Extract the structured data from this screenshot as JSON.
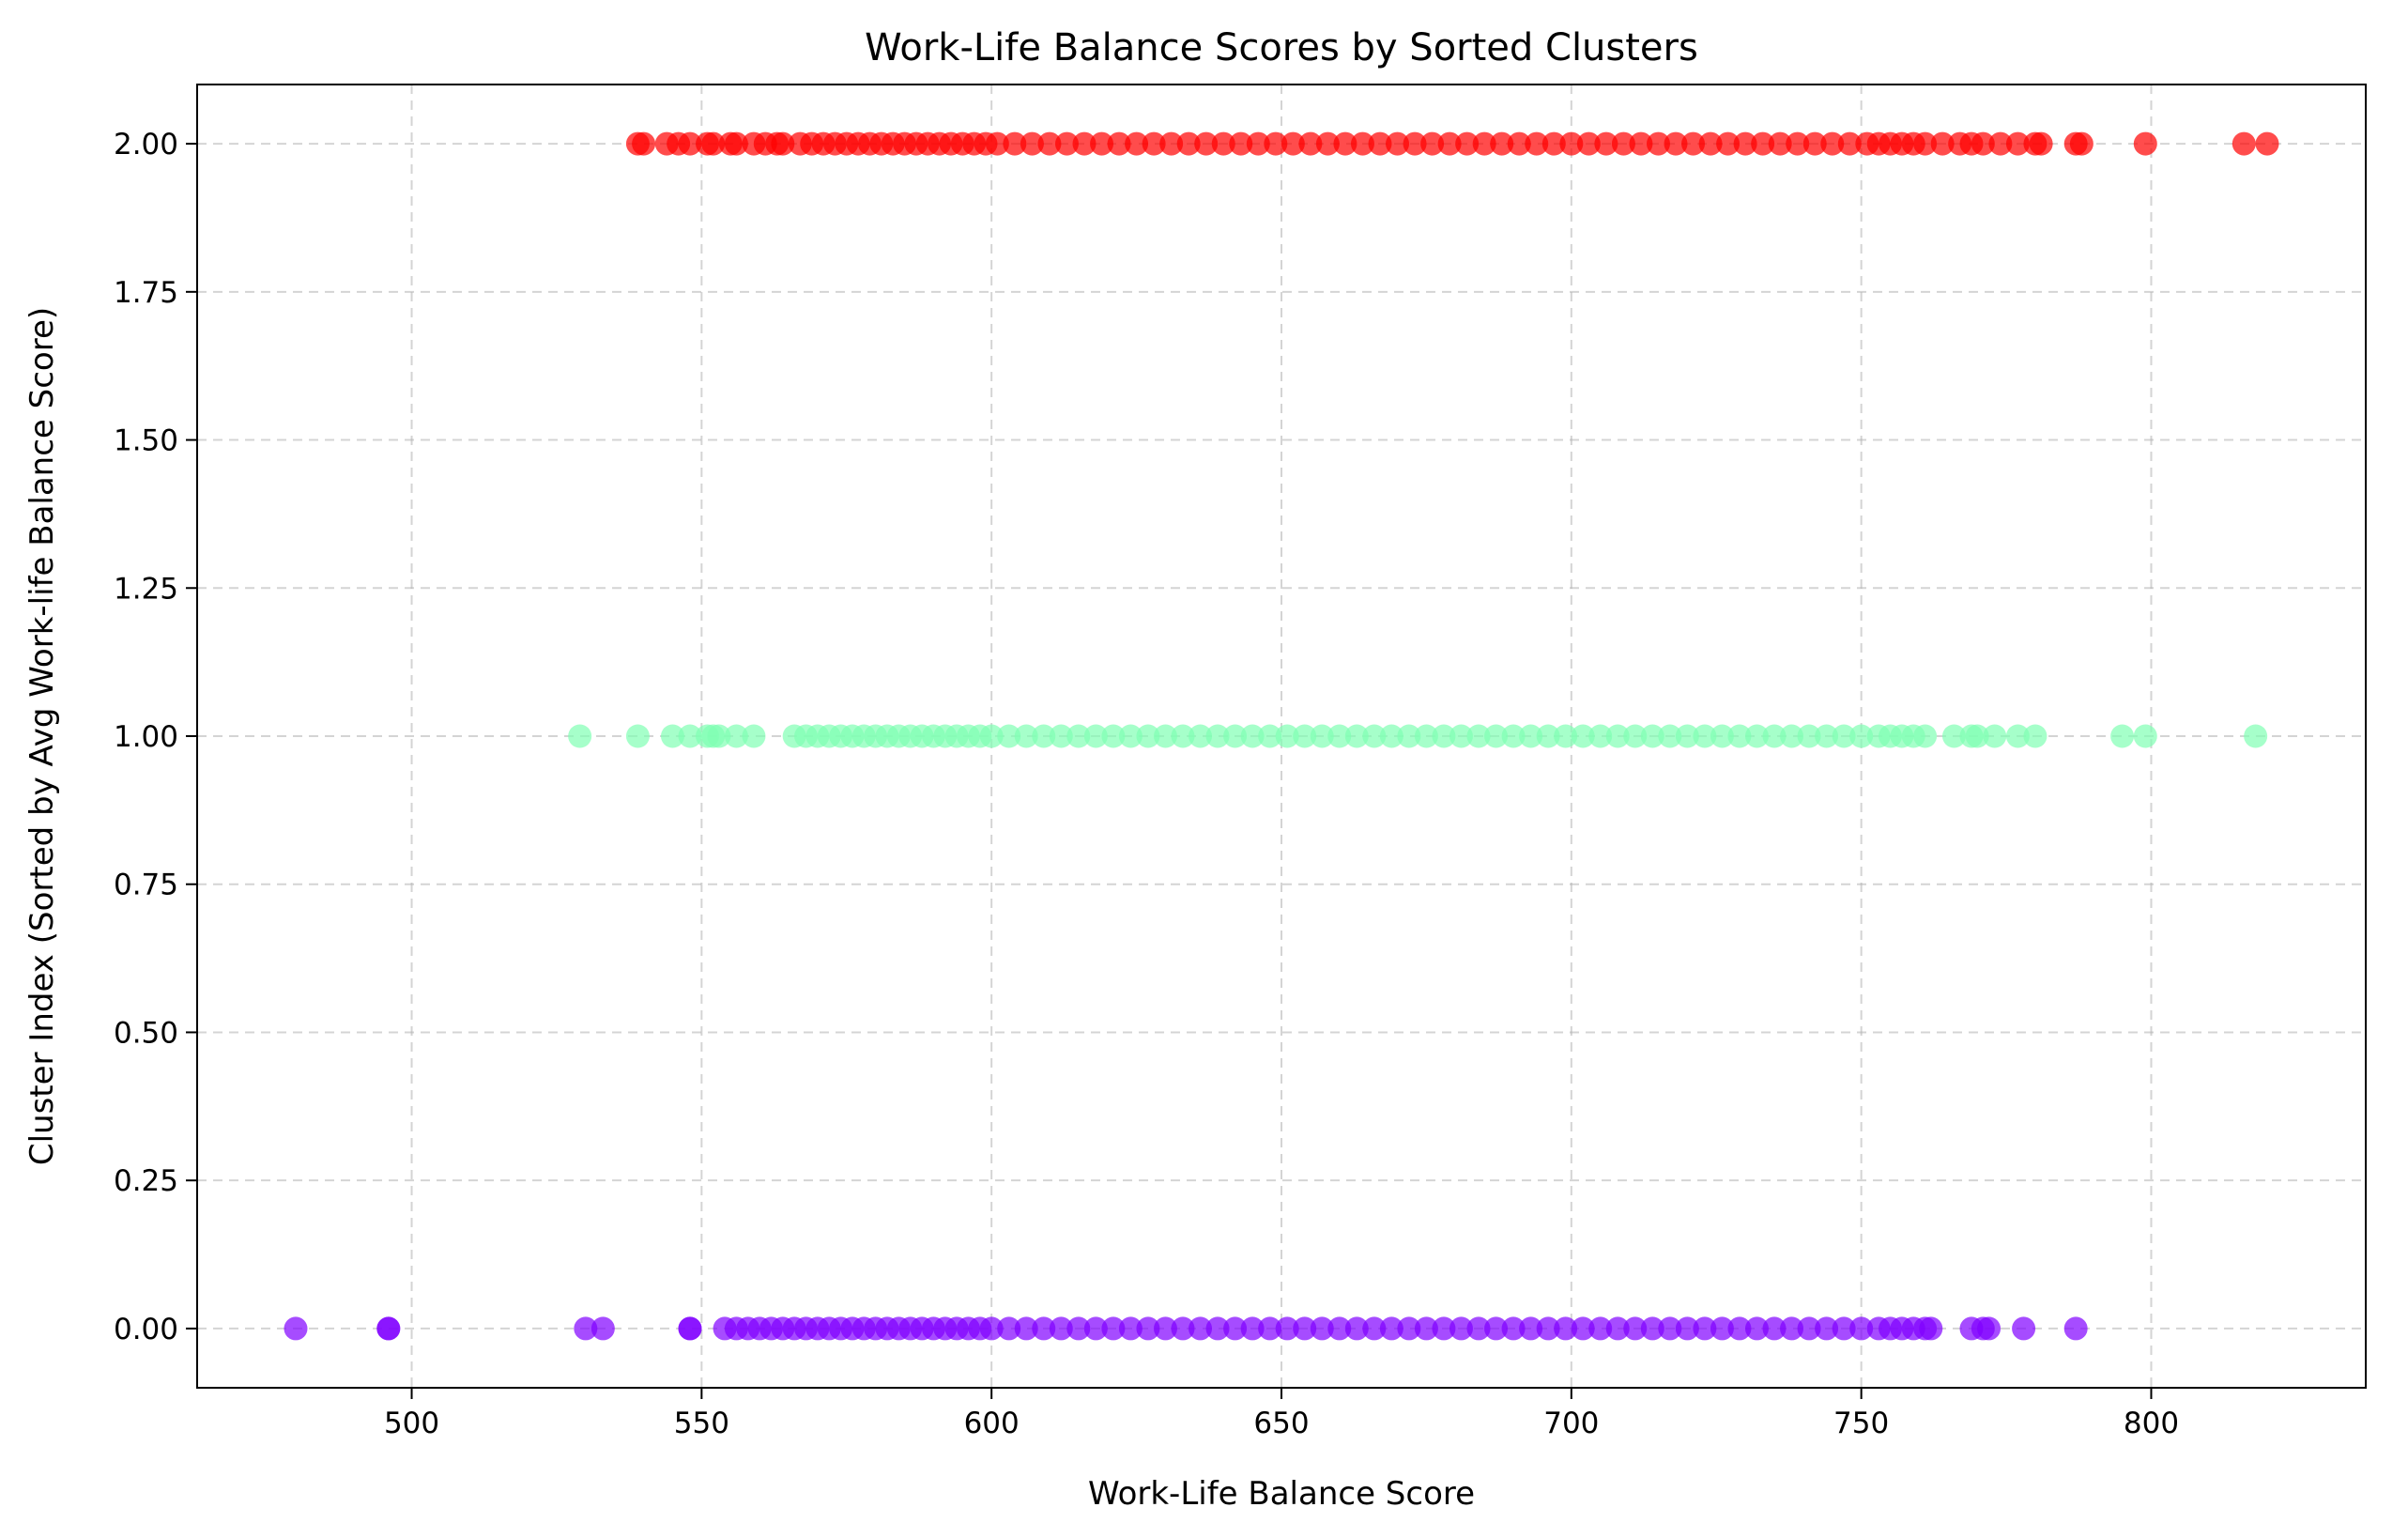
{
  "chart_data": {
    "type": "scatter",
    "title": "Work-Life Balance Scores by Sorted Clusters",
    "xlabel": "Work-Life Balance Score",
    "ylabel": "Cluster Index (Sorted by Avg Work-life Balance Score)",
    "xlim": [
      463,
      837
    ],
    "ylim": [
      -0.1,
      2.1
    ],
    "x_ticks": [
      500,
      550,
      600,
      650,
      700,
      750,
      800
    ],
    "x_tick_labels": [
      "500",
      "550",
      "600",
      "650",
      "700",
      "750",
      "800"
    ],
    "y_ticks": [
      0,
      0.25,
      0.5,
      0.75,
      1.0,
      1.25,
      1.5,
      1.75,
      2.0
    ],
    "y_tick_labels": [
      "0.00",
      "0.25",
      "0.50",
      "0.75",
      "1.00",
      "1.25",
      "1.50",
      "1.75",
      "2.00"
    ],
    "grid": true,
    "legend": "none",
    "series": [
      {
        "color": "#8000ff",
        "y": 0,
        "x": [
          480,
          496,
          496,
          530,
          533,
          548,
          548,
          554,
          556,
          558,
          560,
          562,
          564,
          566,
          568,
          570,
          572,
          574,
          576,
          578,
          580,
          582,
          584,
          586,
          588,
          590,
          592,
          594,
          596,
          598,
          600,
          603,
          606,
          609,
          612,
          615,
          618,
          621,
          624,
          627,
          630,
          633,
          636,
          639,
          642,
          645,
          648,
          651,
          654,
          657,
          660,
          663,
          666,
          669,
          672,
          675,
          678,
          681,
          684,
          687,
          690,
          693,
          696,
          699,
          702,
          705,
          708,
          711,
          714,
          717,
          720,
          723,
          726,
          729,
          732,
          735,
          738,
          741,
          744,
          747,
          750,
          753,
          755,
          757,
          759,
          761,
          762,
          769,
          771,
          772,
          778,
          787
        ]
      },
      {
        "color": "#80ffb4",
        "y": 1,
        "x": [
          529,
          539,
          545,
          548,
          551,
          552,
          553,
          556,
          559,
          566,
          568,
          570,
          572,
          574,
          576,
          578,
          580,
          582,
          584,
          586,
          588,
          590,
          592,
          594,
          596,
          598,
          600,
          603,
          606,
          609,
          612,
          615,
          618,
          621,
          624,
          627,
          630,
          633,
          636,
          639,
          642,
          645,
          648,
          651,
          654,
          657,
          660,
          663,
          666,
          669,
          672,
          675,
          678,
          681,
          684,
          687,
          690,
          693,
          696,
          699,
          702,
          705,
          708,
          711,
          714,
          717,
          720,
          723,
          726,
          729,
          732,
          735,
          738,
          741,
          744,
          747,
          750,
          753,
          755,
          757,
          759,
          761,
          766,
          769,
          770,
          773,
          777,
          780,
          795,
          799,
          818
        ]
      },
      {
        "color": "#ff0000",
        "y": 2,
        "x": [
          539,
          540,
          544,
          546,
          548,
          551,
          552,
          555,
          556,
          559,
          561,
          563,
          564,
          567,
          569,
          571,
          573,
          575,
          577,
          579,
          581,
          583,
          585,
          587,
          589,
          591,
          593,
          595,
          597,
          599,
          601,
          604,
          607,
          610,
          613,
          616,
          619,
          622,
          625,
          628,
          631,
          634,
          637,
          640,
          643,
          646,
          649,
          652,
          655,
          658,
          661,
          664,
          667,
          670,
          673,
          676,
          679,
          682,
          685,
          688,
          691,
          694,
          697,
          700,
          703,
          706,
          709,
          712,
          715,
          718,
          721,
          724,
          727,
          730,
          733,
          736,
          739,
          742,
          745,
          748,
          751,
          753,
          755,
          757,
          759,
          761,
          764,
          767,
          769,
          771,
          774,
          777,
          780,
          781,
          787,
          788,
          799,
          816,
          820
        ]
      }
    ]
  }
}
